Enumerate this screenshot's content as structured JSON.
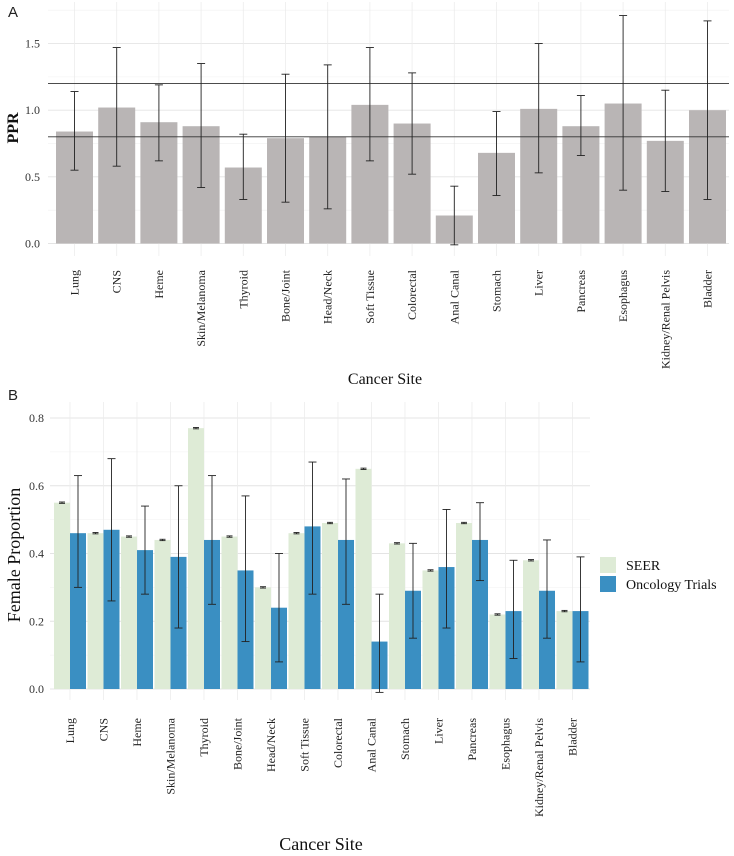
{
  "chart_data": [
    {
      "panel": "A",
      "type": "bar",
      "ylabel": "PPR",
      "xlabel": "Cancer Site",
      "ylim": [
        0,
        1.75
      ],
      "yticks": [
        "0.0",
        "0.5",
        "1.0",
        "1.5"
      ],
      "reference_lines": [
        0.8,
        1.2
      ],
      "categories": [
        "Lung",
        "CNS",
        "Heme",
        "Skin/Melanoma",
        "Thyroid",
        "Bone/Joint",
        "Head/Neck",
        "Soft Tissue",
        "Colorectal",
        "Anal Canal",
        "Stomach",
        "Liver",
        "Pancreas",
        "Esophagus",
        "Kidney/Renal Pelvis",
        "Bladder"
      ],
      "values": [
        0.84,
        1.02,
        0.91,
        0.88,
        0.57,
        0.79,
        0.8,
        1.04,
        0.9,
        0.21,
        0.68,
        1.01,
        0.88,
        1.05,
        0.77,
        1.0
      ],
      "error_low": [
        0.55,
        0.58,
        0.62,
        0.42,
        0.33,
        0.31,
        0.26,
        0.62,
        0.52,
        -0.01,
        0.36,
        0.53,
        0.66,
        0.4,
        0.39,
        0.33
      ],
      "error_high": [
        1.14,
        1.47,
        1.19,
        1.35,
        0.82,
        1.27,
        1.34,
        1.47,
        1.28,
        0.43,
        0.99,
        1.5,
        1.11,
        1.71,
        1.15,
        1.67
      ],
      "bar_color": "#b9b5b5"
    },
    {
      "panel": "B",
      "type": "bar",
      "ylabel": "Female Proportion",
      "xlabel": "Cancer Site",
      "ylim": [
        0,
        0.8
      ],
      "yticks": [
        "0.0",
        "0.2",
        "0.4",
        "0.6",
        "0.8"
      ],
      "categories": [
        "Lung",
        "CNS",
        "Heme",
        "Skin/Melanoma",
        "Thyroid",
        "Bone/Joint",
        "Head/Neck",
        "Soft Tissue",
        "Colorectal",
        "Anal Canal",
        "Stomach",
        "Liver",
        "Pancreas",
        "Esophagus",
        "Kidney/Renal Pelvis",
        "Bladder"
      ],
      "series": [
        {
          "name": "SEER",
          "color": "#deebd6",
          "values": [
            0.55,
            0.46,
            0.45,
            0.44,
            0.77,
            0.45,
            0.3,
            0.46,
            0.49,
            0.65,
            0.43,
            0.35,
            0.49,
            0.22,
            0.38,
            0.23
          ],
          "error_low": [
            0.548,
            0.458,
            0.448,
            0.438,
            0.768,
            0.448,
            0.298,
            0.458,
            0.488,
            0.648,
            0.428,
            0.348,
            0.488,
            0.218,
            0.378,
            0.228
          ],
          "error_high": [
            0.552,
            0.462,
            0.452,
            0.442,
            0.772,
            0.452,
            0.302,
            0.462,
            0.492,
            0.652,
            0.432,
            0.352,
            0.492,
            0.222,
            0.382,
            0.232
          ]
        },
        {
          "name": "Oncology Trials",
          "color": "#3a8fc2",
          "values": [
            0.46,
            0.47,
            0.41,
            0.39,
            0.44,
            0.35,
            0.24,
            0.48,
            0.44,
            0.14,
            0.29,
            0.36,
            0.44,
            0.23,
            0.29,
            0.23
          ],
          "error_low": [
            0.3,
            0.26,
            0.28,
            0.18,
            0.25,
            0.14,
            0.08,
            0.28,
            0.25,
            -0.01,
            0.15,
            0.18,
            0.32,
            0.09,
            0.15,
            0.08
          ],
          "error_high": [
            0.63,
            0.68,
            0.54,
            0.6,
            0.63,
            0.57,
            0.4,
            0.67,
            0.62,
            0.28,
            0.43,
            0.53,
            0.55,
            0.38,
            0.44,
            0.39
          ]
        }
      ],
      "legend": [
        "SEER",
        "Oncology Trials"
      ]
    }
  ]
}
